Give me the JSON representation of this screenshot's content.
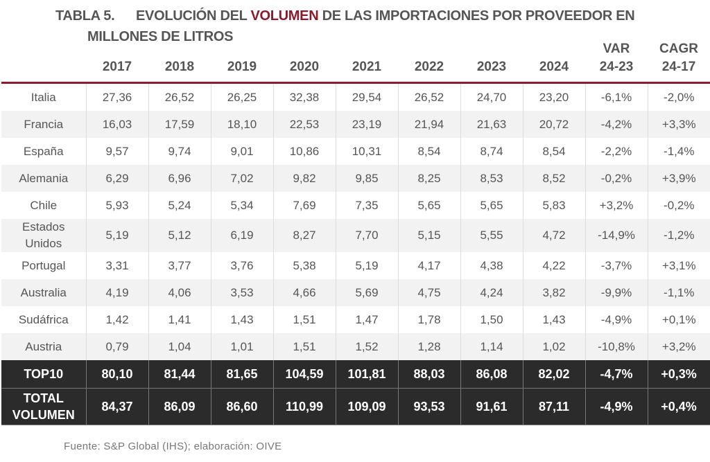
{
  "title": {
    "number": "TABLA 5.",
    "part1": "EVOLUCIÓN DEL ",
    "highlight": "VOLUMEN",
    "part2": " DE LAS IMPORTACIONES POR PROVEEDOR EN",
    "line2": "MILLONES DE LITROS"
  },
  "colors": {
    "accent": "#8b1a2b",
    "dark_row": "#2b2b2b"
  },
  "headers": [
    "",
    "2017",
    "2018",
    "2019",
    "2020",
    "2021",
    "2022",
    "2023",
    "2024",
    "VAR\n24-23",
    "CAGR\n24-17"
  ],
  "rows": [
    [
      "Italia",
      "27,36",
      "26,52",
      "26,25",
      "32,38",
      "29,54",
      "26,52",
      "24,70",
      "23,20",
      "-6,1%",
      "-2,0%"
    ],
    [
      "Francia",
      "16,03",
      "17,59",
      "18,10",
      "22,53",
      "23,19",
      "21,94",
      "21,63",
      "20,72",
      "-4,2%",
      "+3,3%"
    ],
    [
      "España",
      "9,57",
      "9,74",
      "9,01",
      "10,86",
      "10,31",
      "8,54",
      "8,74",
      "8,54",
      "-2,2%",
      "-1,4%"
    ],
    [
      "Alemania",
      "6,29",
      "6,96",
      "7,02",
      "9,82",
      "9,85",
      "8,25",
      "8,53",
      "8,52",
      "-0,2%",
      "+3,9%"
    ],
    [
      "Chile",
      "5,93",
      "5,24",
      "5,34",
      "7,69",
      "7,35",
      "5,65",
      "5,65",
      "5,83",
      "+3,2%",
      "-0,2%"
    ],
    [
      "Estados Unidos",
      "5,19",
      "5,12",
      "6,19",
      "8,27",
      "7,70",
      "5,15",
      "5,55",
      "4,72",
      "-14,9%",
      "-1,2%"
    ],
    [
      "Portugal",
      "3,31",
      "3,77",
      "3,76",
      "5,38",
      "5,19",
      "4,17",
      "4,38",
      "4,22",
      "-3,7%",
      "+3,1%"
    ],
    [
      "Australia",
      "4,19",
      "4,06",
      "3,53",
      "4,66",
      "5,69",
      "4,75",
      "4,24",
      "3,82",
      "-9,9%",
      "-1,1%"
    ],
    [
      "Sudáfrica",
      "1,42",
      "1,41",
      "1,43",
      "1,51",
      "1,47",
      "1,78",
      "1,50",
      "1,43",
      "-4,9%",
      "+0,1%"
    ],
    [
      "Austria",
      "0,79",
      "1,04",
      "1,01",
      "1,51",
      "1,52",
      "1,28",
      "1,14",
      "1,02",
      "-10,8%",
      "+3,2%"
    ]
  ],
  "totals": [
    [
      "TOP10",
      "80,10",
      "81,44",
      "81,65",
      "104,59",
      "101,81",
      "88,03",
      "86,08",
      "82,02",
      "-4,7%",
      "+0,3%"
    ],
    [
      "TOTAL VOLUMEN",
      "84,37",
      "86,09",
      "86,60",
      "110,99",
      "109,09",
      "93,53",
      "91,61",
      "87,11",
      "-4,9%",
      "+0,4%"
    ]
  ],
  "footer": "Fuente: S&P Global (IHS); elaboración: OIVE"
}
